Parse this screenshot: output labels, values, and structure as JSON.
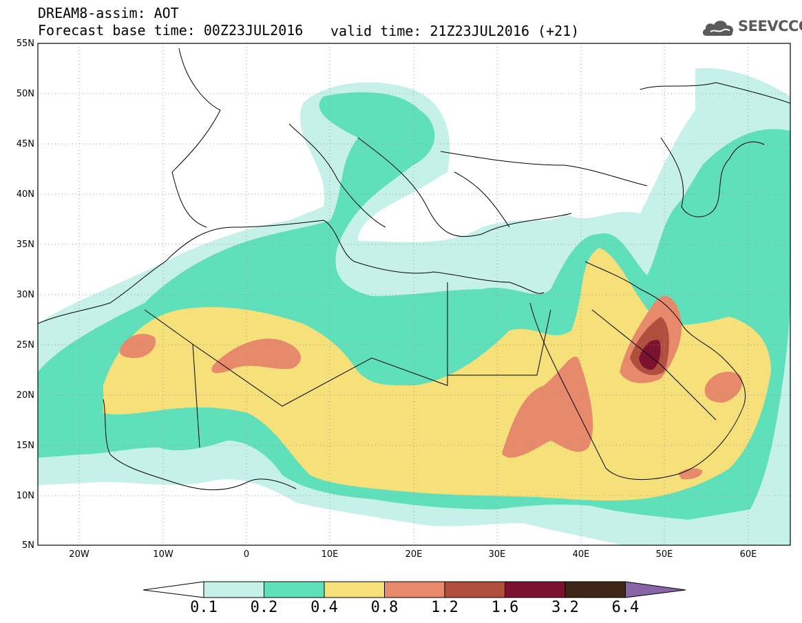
{
  "header": {
    "title": "DREAM8-assim: AOT",
    "base_time": "Forecast base time: 00Z23JUL2016",
    "valid_time": "valid time: 21Z23JUL2016 (+21)"
  },
  "logo": {
    "text": "SEEVCCC",
    "icon": "cloud-icon"
  },
  "map": {
    "lon_range": [
      -25,
      65
    ],
    "lat_range": [
      5,
      55
    ],
    "grid": "dotted",
    "lat_labels": [
      "55N",
      "50N",
      "45N",
      "40N",
      "35N",
      "30N",
      "25N",
      "20N",
      "15N",
      "10N",
      "5N"
    ],
    "lon_labels": [
      "20W",
      "10W",
      "0",
      "10E",
      "20E",
      "30E",
      "40E",
      "50E",
      "60E"
    ]
  },
  "colorbar": {
    "labels": [
      "0.1",
      "0.2",
      "0.4",
      "0.8",
      "1.2",
      "1.6",
      "3.2",
      "6.4"
    ],
    "colors": [
      "#c6f1ea",
      "#5fdfba",
      "#f6e07a",
      "#e68a6b",
      "#b04f3e",
      "#7c1130",
      "#3e2716",
      "#8a64a8"
    ]
  }
}
